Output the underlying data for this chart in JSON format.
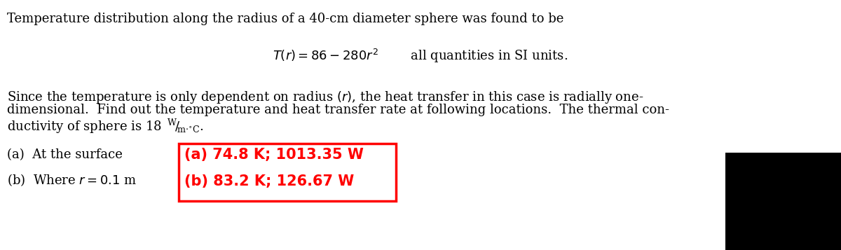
{
  "bg_color": "#ffffff",
  "text_color": "#000000",
  "red_color": "#ff0000",
  "line1": "Temperature distribution along the radius of a 40-cm diameter sphere was found to be",
  "item_a": "(a)  At the surface",
  "item_b": "(b)  Where $r = 0.1$ m",
  "answer_a": "(a) 74.8 K; 1013.35 W",
  "answer_b": "(b) 83.2 K; 126.67 W",
  "font_size_main": 13.0,
  "font_size_answer": 15.0,
  "fig_width": 12.0,
  "fig_height": 3.57,
  "dpi": 100
}
